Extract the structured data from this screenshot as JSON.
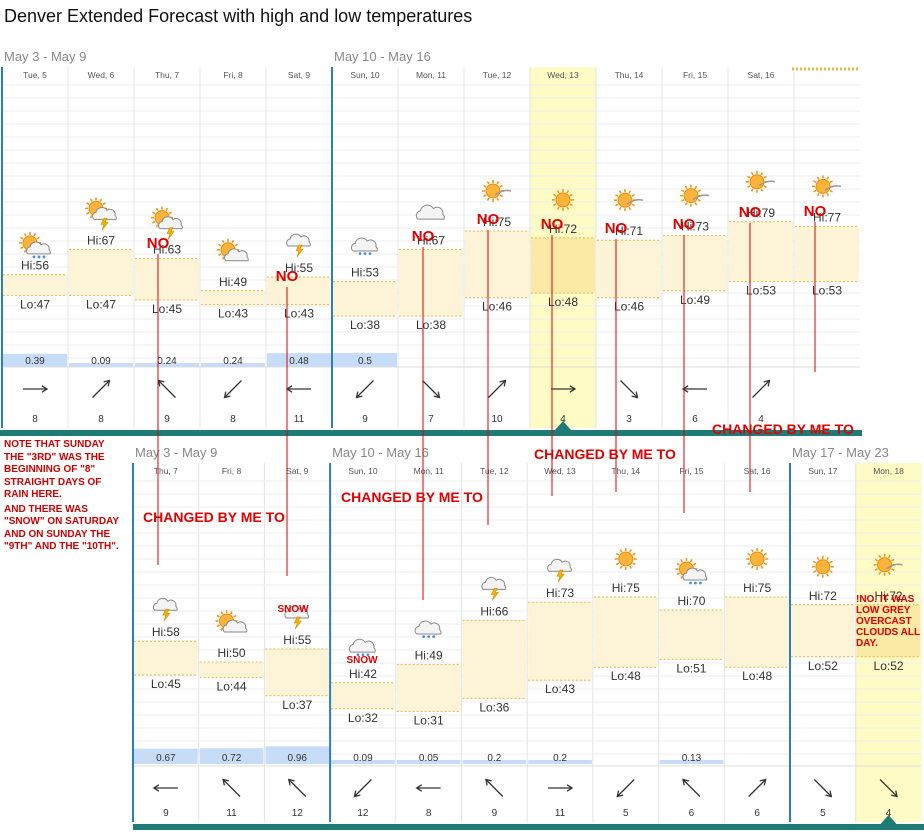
{
  "title": "Denver Extended Forecast with high and low temperatures",
  "top_panel": {
    "weeks": [
      {
        "label": "May 3 - May 9",
        "start": 0,
        "span": 5
      },
      {
        "label": "May 10 - May 16",
        "start": 5,
        "span": 7
      }
    ],
    "days": [
      {
        "day": "Tue, 5",
        "hi": "Hi:56",
        "lo": "Lo:47",
        "hi_v": 56,
        "lo_v": 47,
        "precip": "0.39",
        "precip_v": 0.39,
        "wind": "8",
        "wind_dir": "E",
        "icon": "rain-sun-icon",
        "icon_y": 52
      },
      {
        "day": "Wed, 6",
        "hi": "Hi:67",
        "lo": "Lo:47",
        "hi_v": 67,
        "lo_v": 47,
        "precip": "0.09",
        "precip_v": 0.09,
        "wind": "8",
        "wind_dir": "NE",
        "icon": "storm-sun-icon",
        "icon_y": 67
      },
      {
        "day": "Thu, 7",
        "hi": "Hi:63",
        "lo": "Lo:45",
        "hi_v": 63,
        "lo_v": 45,
        "precip": "0.24",
        "precip_v": 0.24,
        "wind": "9",
        "wind_dir": "NW",
        "icon": "storm-sun-icon",
        "icon_y": 63
      },
      {
        "day": "Fri, 8",
        "hi": "Hi:49",
        "lo": "Lo:43",
        "hi_v": 49,
        "lo_v": 43,
        "precip": "0.24",
        "precip_v": 0.24,
        "wind": "8",
        "wind_dir": "SW",
        "icon": "partly-cloudy-icon",
        "icon_y": 49
      },
      {
        "day": "Sat, 9",
        "hi": "Hi:55",
        "lo": "Lo:43",
        "hi_v": 55,
        "lo_v": 43,
        "precip": "0.48",
        "precip_v": 0.48,
        "wind": "11",
        "wind_dir": "W",
        "icon": "storm-cloud-icon",
        "icon_y": 55
      },
      {
        "day": "Sun, 10",
        "hi": "Hi:53",
        "lo": "Lo:38",
        "hi_v": 53,
        "lo_v": 38,
        "precip": "0.5",
        "precip_v": 0.5,
        "wind": "9",
        "wind_dir": "SW",
        "icon": "rain-cloud-icon",
        "icon_y": 53
      },
      {
        "day": "Mon, 11",
        "hi": "Hi:67",
        "lo": "Lo:38",
        "hi_v": 67,
        "lo_v": 38,
        "precip": "",
        "precip_v": 0,
        "wind": "7",
        "wind_dir": "SE",
        "icon": "cloud-icon",
        "icon_y": 67
      },
      {
        "day": "Tue, 12",
        "hi": "Hi:75",
        "lo": "Lo:46",
        "hi_v": 75,
        "lo_v": 46,
        "precip": "",
        "precip_v": 0,
        "wind": "10",
        "wind_dir": "NE",
        "icon": "sun-cloud-icon",
        "icon_y": 75
      },
      {
        "day": "Wed, 13",
        "hi": "Hi:72",
        "lo": "Lo:48",
        "hi_v": 72,
        "lo_v": 48,
        "precip": "",
        "precip_v": 0,
        "wind": "4",
        "wind_dir": "E",
        "icon": "sun-icon",
        "icon_y": 72
      },
      {
        "day": "Thu, 14",
        "hi": "Hi:71",
        "lo": "Lo:46",
        "hi_v": 71,
        "lo_v": 46,
        "precip": "",
        "precip_v": 0,
        "wind": "3",
        "wind_dir": "SE",
        "icon": "sun-cloud-icon",
        "icon_y": 71
      },
      {
        "day": "Fri, 15",
        "hi": "Hi:73",
        "lo": "Lo:49",
        "hi_v": 73,
        "lo_v": 49,
        "precip": "",
        "precip_v": 0,
        "wind": "6",
        "wind_dir": "W",
        "icon": "sun-cloud-icon",
        "icon_y": 73
      },
      {
        "day": "Sat, 16",
        "hi": "Hi:79",
        "lo": "Lo:53",
        "hi_v": 79,
        "lo_v": 53,
        "precip": "",
        "precip_v": 0,
        "wind": "4",
        "wind_dir": "NE",
        "icon": "sun-cloud-icon",
        "icon_y": 79
      },
      {
        "day": "",
        "hi": "Hi:77",
        "lo": "Lo:53",
        "hi_v": 77,
        "lo_v": 53,
        "precip": "",
        "precip_v": 0,
        "wind": "",
        "wind_dir": "",
        "icon": "sun-cloud-icon",
        "icon_y": 77
      }
    ],
    "highlight_index": 8
  },
  "bottom_panel": {
    "weeks": [
      {
        "label": "May 3 - May 9",
        "start": 0,
        "span": 3
      },
      {
        "label": "May 10 - May 16",
        "start": 3,
        "span": 7
      },
      {
        "label": "May 17 - May 23",
        "start": 10,
        "span": 2
      }
    ],
    "days": [
      {
        "day": "Thu, 7",
        "hi": "Hi:58",
        "lo": "Lo:45",
        "hi_v": 58,
        "lo_v": 45,
        "precip": "0.67",
        "precip_v": 0.67,
        "wind": "9",
        "wind_dir": "W",
        "icon": "storm-cloud-icon",
        "icon_y": 58
      },
      {
        "day": "Fri, 8",
        "hi": "Hi:50",
        "lo": "Lo:44",
        "hi_v": 50,
        "lo_v": 44,
        "precip": "0.72",
        "precip_v": 0.72,
        "wind": "11",
        "wind_dir": "NW",
        "icon": "partly-cloudy-icon",
        "icon_y": 50
      },
      {
        "day": "Sat, 9",
        "hi": "Hi:55",
        "lo": "Lo:37",
        "hi_v": 55,
        "lo_v": 37,
        "precip": "0.96",
        "precip_v": 0.96,
        "wind": "12",
        "wind_dir": "NW",
        "icon": "storm-cloud-icon",
        "icon_y": 55
      },
      {
        "day": "Sun, 10",
        "hi": "Hi:42",
        "lo": "Lo:32",
        "hi_v": 42,
        "lo_v": 32,
        "precip": "0.09",
        "precip_v": 0.09,
        "wind": "12",
        "wind_dir": "SW",
        "icon": "rain-cloud-icon",
        "icon_y": 42
      },
      {
        "day": "Mon, 11",
        "hi": "Hi:49",
        "lo": "Lo:31",
        "hi_v": 49,
        "lo_v": 31,
        "precip": "0.05",
        "precip_v": 0.05,
        "wind": "8",
        "wind_dir": "W",
        "icon": "rain-cloud-icon",
        "icon_y": 49
      },
      {
        "day": "Tue, 12",
        "hi": "Hi:66",
        "lo": "Lo:36",
        "hi_v": 66,
        "lo_v": 36,
        "precip": "0.2",
        "precip_v": 0.2,
        "wind": "9",
        "wind_dir": "NW",
        "icon": "storm-cloud-icon",
        "icon_y": 66
      },
      {
        "day": "Wed, 13",
        "hi": "Hi:73",
        "lo": "Lo:43",
        "hi_v": 73,
        "lo_v": 43,
        "precip": "0.2",
        "precip_v": 0.2,
        "wind": "11",
        "wind_dir": "E",
        "icon": "storm-cloud-icon",
        "icon_y": 73
      },
      {
        "day": "Thu, 14",
        "hi": "Hi:75",
        "lo": "Lo:48",
        "hi_v": 75,
        "lo_v": 48,
        "precip": "",
        "precip_v": 0,
        "wind": "5",
        "wind_dir": "SW",
        "icon": "sun-icon",
        "icon_y": 75
      },
      {
        "day": "Fri, 15",
        "hi": "Hi:70",
        "lo": "Lo:51",
        "hi_v": 70,
        "lo_v": 51,
        "precip": "0.13",
        "precip_v": 0.13,
        "wind": "6",
        "wind_dir": "NW",
        "icon": "rain-sun-icon",
        "icon_y": 70
      },
      {
        "day": "Sat, 16",
        "hi": "Hi:75",
        "lo": "Lo:48",
        "hi_v": 75,
        "lo_v": 48,
        "precip": "",
        "precip_v": 0,
        "wind": "6",
        "wind_dir": "NE",
        "icon": "sun-icon",
        "icon_y": 75
      },
      {
        "day": "Sun, 17",
        "hi": "Hi:72",
        "lo": "Lo:52",
        "hi_v": 72,
        "lo_v": 52,
        "precip": "",
        "precip_v": 0,
        "wind": "5",
        "wind_dir": "SE",
        "icon": "sun-icon",
        "icon_y": 72
      },
      {
        "day": "Mon, 18",
        "hi": "Hi:72",
        "lo": "Lo:52",
        "hi_v": 72,
        "lo_v": 52,
        "precip": "",
        "precip_v": 0,
        "wind": "4",
        "wind_dir": "SE",
        "icon": "sun-cloud-icon",
        "icon_y": 72
      }
    ],
    "highlight_index": 11
  },
  "annotations": {
    "no_label": "NO",
    "changed_label": "CHANGED BY ME TO",
    "snow_label": "SNOW",
    "overcast_note": "!NO. IT WAS LOW GREY OVERCAST CLOUDS ALL DAY.",
    "note_lines": [
      "NOTE THAT SUNDAY THE \"3RD\" WAS THE BEGINNING OF \"8\" STRAIGHT DAYS OF RAIN HERE.",
      "AND THERE WAS \"SNOW\" ON SATURDAY AND ON SUNDAY THE \"9TH\" AND THE \"10TH\"."
    ]
  },
  "colors": {
    "accent": "#2a7fbf",
    "bar_fill": "#fdf3d6",
    "bar_dash": "#e9b64a",
    "highlight": "#fffbc4",
    "precip": "#c7dcf6",
    "teal": "#1e7b76",
    "annotation": "#e00000"
  }
}
